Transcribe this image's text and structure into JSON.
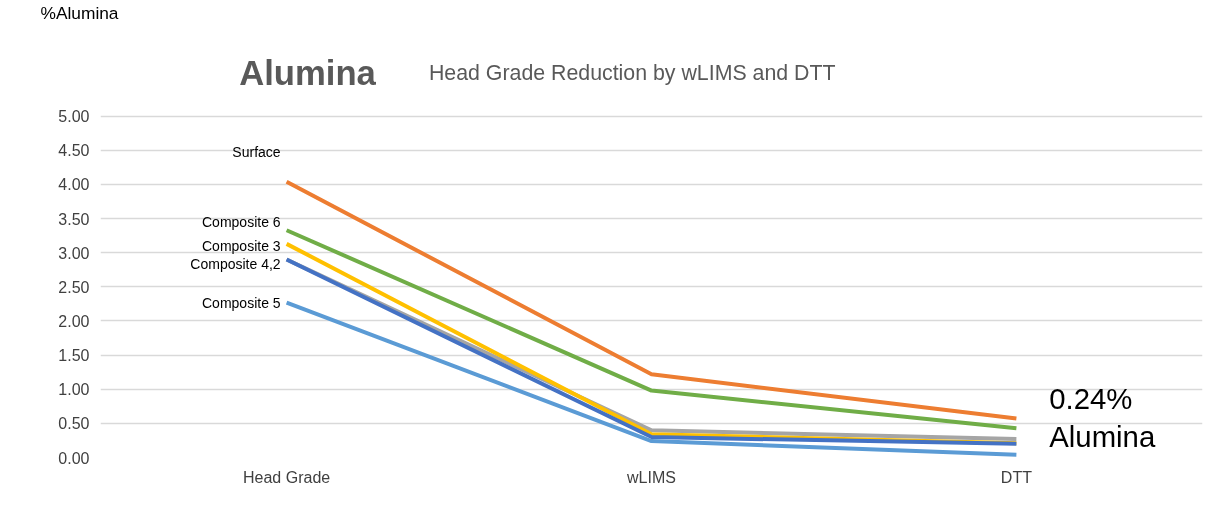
{
  "chart_data": {
    "type": "line",
    "title": "Alumina Head Grade Reduction by wLIMS and DTT",
    "ylabel": "%Alumina",
    "categories": [
      "Head Grade",
      "wLIMS",
      "DTT"
    ],
    "series": [
      {
        "color": "#a5a5a5",
        "values": [
          2.9,
          0.4,
          0.27
        ]
      },
      {
        "name": "Surface",
        "color": "#ed7d31",
        "values": [
          4.04,
          1.22,
          0.57
        ]
      },
      {
        "name": "Composite 6",
        "color": "#70ad47",
        "values": [
          3.33,
          0.98,
          0.43
        ]
      },
      {
        "name": "Composite 3",
        "color": "#ffc000",
        "values": [
          3.13,
          0.34,
          0.21
        ]
      },
      {
        "name": "Composite 4,2",
        "color": "#4472c4",
        "values": [
          2.9,
          0.3,
          0.2
        ]
      },
      {
        "name": "Composite 5",
        "color": "#5b9bd5",
        "values": [
          2.27,
          0.24,
          0.04
        ]
      }
    ],
    "ylim": [
      0,
      5
    ],
    "yticks": [
      {
        "value": 0,
        "label": "0.00"
      },
      {
        "value": 0.5,
        "label": "0.50"
      },
      {
        "value": 1,
        "label": "1.00"
      },
      {
        "value": 1.5,
        "label": "1.50"
      },
      {
        "value": 2,
        "label": "2.00"
      },
      {
        "value": 2.5,
        "label": "2.50"
      },
      {
        "value": 3,
        "label": "3.00"
      },
      {
        "value": 3.5,
        "label": "3.50"
      },
      {
        "value": 4,
        "label": "4.00"
      },
      {
        "value": 4.5,
        "label": "4.50"
      },
      {
        "value": 5,
        "label": "5.00"
      }
    ],
    "grid": "y",
    "marker": "none",
    "line_style": "solid",
    "annotations": [
      "0.24%\nAlumina"
    ]
  }
}
